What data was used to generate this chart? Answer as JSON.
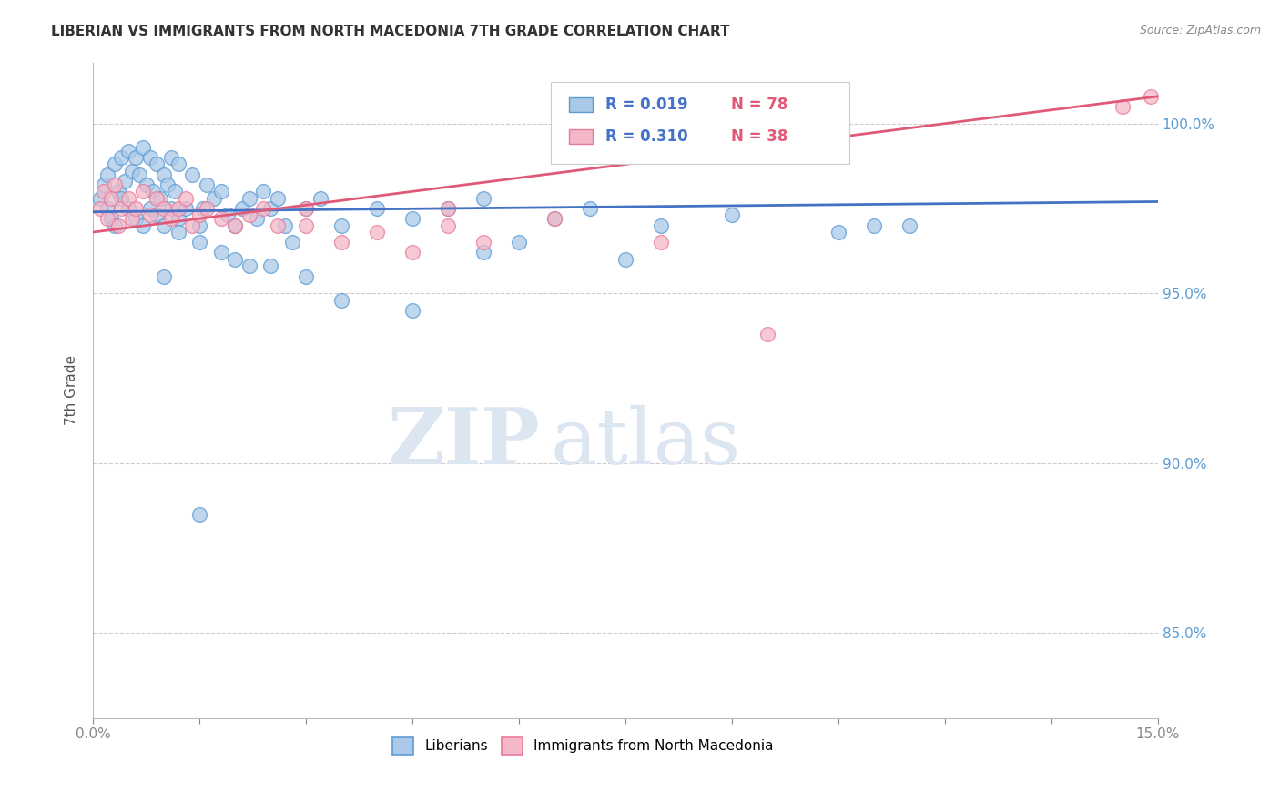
{
  "title": "LIBERIAN VS IMMIGRANTS FROM NORTH MACEDONIA 7TH GRADE CORRELATION CHART",
  "source": "Source: ZipAtlas.com",
  "ylabel": "7th Grade",
  "yticks": [
    85.0,
    90.0,
    95.0,
    100.0
  ],
  "ytick_labels": [
    "85.0%",
    "90.0%",
    "95.0%",
    "100.0%"
  ],
  "xlim": [
    0.0,
    15.0
  ],
  "ylim": [
    82.5,
    101.8
  ],
  "legend_blue_label": "Liberians",
  "legend_pink_label": "Immigrants from North Macedonia",
  "R_blue": 0.019,
  "N_blue": 78,
  "R_pink": 0.31,
  "N_pink": 38,
  "blue_color": "#aac9e8",
  "blue_edge_color": "#5b9bd5",
  "pink_color": "#f4b8c8",
  "pink_edge_color": "#e87a9a",
  "blue_line_color": "#4472c4",
  "pink_line_color": "#e05a78",
  "watermark_color": "#dce6f1",
  "background_color": "#ffffff",
  "title_fontsize": 11,
  "legend_R_color": "#4472c4",
  "legend_N_color": "#e05a78",
  "blue_scatter_x": [
    0.1,
    0.15,
    0.2,
    0.2,
    0.25,
    0.3,
    0.3,
    0.35,
    0.4,
    0.4,
    0.45,
    0.5,
    0.5,
    0.55,
    0.6,
    0.6,
    0.65,
    0.7,
    0.7,
    0.75,
    0.8,
    0.8,
    0.85,
    0.9,
    0.9,
    0.95,
    1.0,
    1.0,
    1.05,
    1.1,
    1.1,
    1.15,
    1.2,
    1.2,
    1.3,
    1.4,
    1.5,
    1.55,
    1.6,
    1.7,
    1.8,
    1.9,
    2.0,
    2.1,
    2.2,
    2.3,
    2.4,
    2.5,
    2.6,
    2.7,
    3.0,
    3.2,
    3.5,
    4.0,
    4.5,
    5.0,
    5.5,
    6.5,
    7.0,
    8.0,
    9.0,
    11.0,
    1.0,
    1.5,
    2.0,
    2.5,
    3.0,
    3.5,
    4.5,
    5.5,
    6.0,
    7.5,
    10.5,
    11.5,
    1.2,
    1.8,
    2.2,
    2.8
  ],
  "blue_scatter_y": [
    97.8,
    98.2,
    98.5,
    97.5,
    97.2,
    98.8,
    97.0,
    98.0,
    99.0,
    97.8,
    98.3,
    99.2,
    97.5,
    98.6,
    99.0,
    97.2,
    98.5,
    99.3,
    97.0,
    98.2,
    99.0,
    97.5,
    98.0,
    98.8,
    97.3,
    97.8,
    98.5,
    97.0,
    98.2,
    99.0,
    97.5,
    98.0,
    98.8,
    97.2,
    97.5,
    98.5,
    97.0,
    97.5,
    98.2,
    97.8,
    98.0,
    97.3,
    97.0,
    97.5,
    97.8,
    97.2,
    98.0,
    97.5,
    97.8,
    97.0,
    97.5,
    97.8,
    97.0,
    97.5,
    97.2,
    97.5,
    97.8,
    97.2,
    97.5,
    97.0,
    97.3,
    97.0,
    95.5,
    96.5,
    96.0,
    95.8,
    95.5,
    94.8,
    94.5,
    96.2,
    96.5,
    96.0,
    96.8,
    97.0,
    96.8,
    96.2,
    95.8,
    96.5
  ],
  "blue_scatter_y_outliers": [
    88.5
  ],
  "blue_scatter_x_outliers": [
    1.5
  ],
  "pink_scatter_x": [
    0.1,
    0.15,
    0.2,
    0.25,
    0.3,
    0.35,
    0.4,
    0.5,
    0.55,
    0.6,
    0.7,
    0.8,
    0.9,
    1.0,
    1.1,
    1.2,
    1.3,
    1.4,
    1.5,
    1.6,
    1.8,
    2.0,
    2.2,
    2.4,
    2.6,
    3.0,
    3.5,
    4.0,
    4.5,
    5.0,
    5.5,
    6.5,
    8.0,
    9.5,
    14.5,
    14.9,
    3.0,
    5.0
  ],
  "pink_scatter_y": [
    97.5,
    98.0,
    97.2,
    97.8,
    98.2,
    97.0,
    97.5,
    97.8,
    97.2,
    97.5,
    98.0,
    97.3,
    97.8,
    97.5,
    97.2,
    97.5,
    97.8,
    97.0,
    97.3,
    97.5,
    97.2,
    97.0,
    97.3,
    97.5,
    97.0,
    97.5,
    96.5,
    96.8,
    96.2,
    97.0,
    96.5,
    97.2,
    96.5,
    93.8,
    100.5,
    100.8,
    97.0,
    97.5
  ]
}
